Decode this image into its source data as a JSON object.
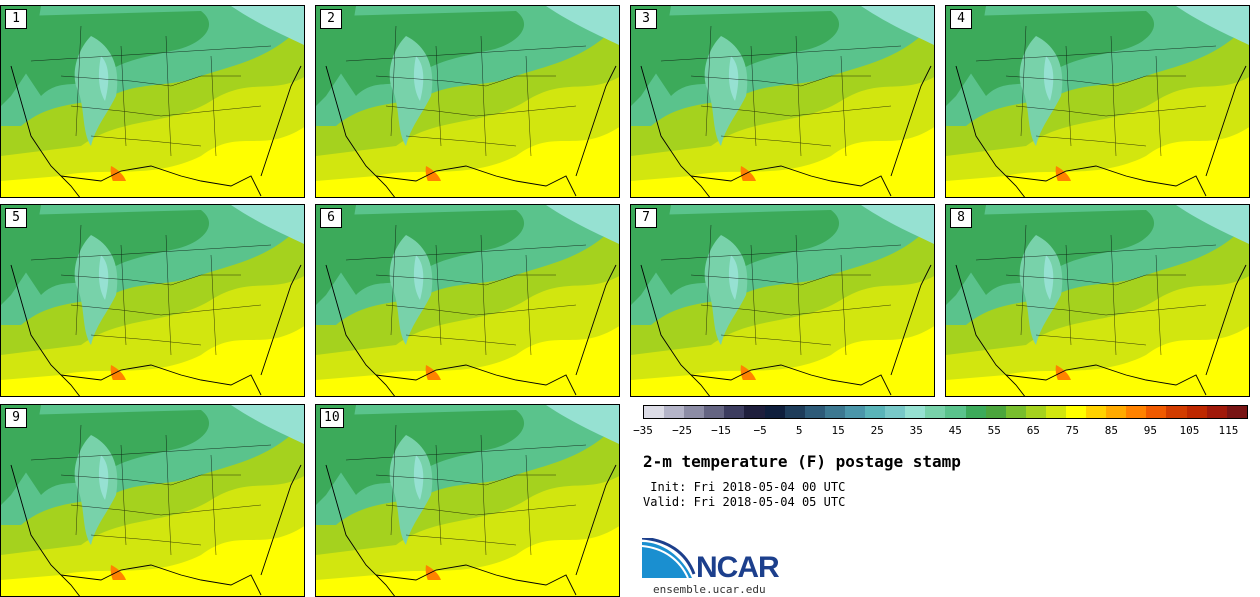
{
  "panels": [
    "1",
    "2",
    "3",
    "4",
    "5",
    "6",
    "7",
    "8",
    "9",
    "10"
  ],
  "colorbar": {
    "colors": [
      "#dcdce6",
      "#b4b4c8",
      "#8c8ca5",
      "#646482",
      "#3c3c5f",
      "#1e1e3c",
      "#0f1e3c",
      "#1e3c5a",
      "#2d5a78",
      "#3c7891",
      "#4b96aa",
      "#5ab4b9",
      "#78c8c8",
      "#96e1d2",
      "#78d2aa",
      "#5ac38c",
      "#3caa5a",
      "#4ba53c",
      "#78be2d",
      "#a5d21e",
      "#d2e60f",
      "#ffff00",
      "#ffd200",
      "#ffaa00",
      "#ff8200",
      "#f05a00",
      "#d23c00",
      "#be2800",
      "#a0190a",
      "#781414"
    ],
    "tick_labels": [
      "−35",
      "−25",
      "−15",
      "−5",
      "5",
      "15",
      "25",
      "35",
      "45",
      "55",
      "65",
      "75",
      "85",
      "95",
      "105",
      "115"
    ]
  },
  "title": "2-m temperature (F) postage stamp",
  "init": " Init: Fri 2018-05-04 00 UTC",
  "valid": "Valid: Fri 2018-05-04 05 UTC",
  "logo": {
    "text": "NCAR",
    "url": "ensemble.ucar.edu",
    "primary": "#1c3f8c",
    "accent": "#1a8fd0"
  },
  "map_colors": {
    "south": "#ffff00",
    "warm": "#d2e60f",
    "mid": "#a5d21e",
    "green": "#5ac38c",
    "dark_green": "#3caa5a",
    "cool": "#78d2aa",
    "cold": "#96e1d2",
    "hot": "#ff8200"
  }
}
